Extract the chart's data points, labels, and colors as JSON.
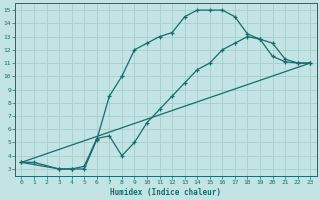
{
  "xlabel": "Humidex (Indice chaleur)",
  "xlim": [
    -0.5,
    23.5
  ],
  "ylim": [
    2.5,
    15.5
  ],
  "xticks": [
    0,
    1,
    2,
    3,
    4,
    5,
    6,
    7,
    8,
    9,
    10,
    11,
    12,
    13,
    14,
    15,
    16,
    17,
    18,
    19,
    20,
    21,
    22,
    23
  ],
  "yticks": [
    3,
    4,
    5,
    6,
    7,
    8,
    9,
    10,
    11,
    12,
    13,
    14,
    15
  ],
  "bg_color": "#c2e4e4",
  "grid_color": "#a8cccc",
  "line_color": "#1a6b6b",
  "line1_x": [
    0,
    1,
    3,
    4,
    5,
    6,
    7,
    8,
    9,
    10,
    11,
    12,
    13,
    14,
    15,
    16,
    17,
    18,
    19,
    20,
    21,
    22,
    23
  ],
  "line1_y": [
    3.5,
    3.5,
    3.0,
    3.0,
    3.0,
    5.2,
    8.5,
    10.0,
    12.0,
    12.5,
    13.0,
    13.3,
    14.5,
    15.0,
    15.0,
    15.0,
    14.5,
    13.2,
    12.8,
    11.5,
    11.1,
    11.0,
    11.0
  ],
  "line2_x": [
    0,
    3,
    4,
    5,
    6,
    7,
    8,
    9,
    10,
    11,
    12,
    13,
    14,
    15,
    16,
    17,
    18,
    19,
    20,
    21,
    22,
    23
  ],
  "line2_y": [
    3.5,
    3.0,
    3.0,
    3.2,
    5.3,
    5.5,
    4.0,
    5.0,
    6.5,
    7.5,
    8.5,
    9.5,
    10.5,
    11.0,
    12.0,
    12.5,
    13.0,
    12.8,
    12.5,
    11.3,
    11.0,
    11.0
  ],
  "line3_x": [
    0,
    23
  ],
  "line3_y": [
    3.5,
    11.0
  ]
}
